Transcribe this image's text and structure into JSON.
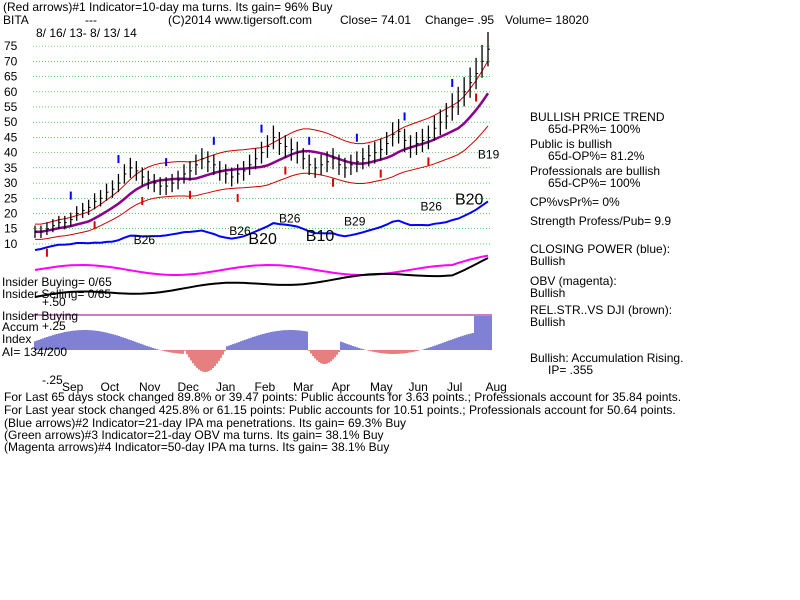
{
  "header": {
    "line1": "(Red arrows)#1 Indicator=10-day ma turns. Its gain= 96% Buy",
    "ticker": "BITA",
    "dashes": "---",
    "copyright": "(C)2014 www.tigersoft.com",
    "close": "Close=  74.01",
    "change": "Change= .95",
    "volume": "Volume= 18020",
    "date_range": "8/ 16/ 13- 8/ 13/ 14"
  },
  "right_panel": {
    "trend_title": "BULLISH PRICE TREND",
    "pr": "65d-PR%= 100%",
    "public_title": "Public is bullish",
    "op": "65d-OP%= 81.2%",
    "pros_title": "Professionals are bullish",
    "cp": "65d-CP%= 100%",
    "cpvspr": "CP%vsPr%=  0%",
    "strength": "Strength Profess/Pub= 9.9",
    "closing_power": "CLOSING POWER (blue):",
    "closing_power_val": "Bullish",
    "obv": "OBV (magenta):",
    "obv_val": "Bullish",
    "relstr": "REL.STR..VS DJI (brown):",
    "relstr_val": "Bullish",
    "accum": "Bullish: Accumulation Rising.",
    "ip": "IP=  .355"
  },
  "left_labels": {
    "insider_buying": "Insider Buying= 0/65",
    "insider_selling": "Insider Selling= 0/65",
    "insider_buying2": "Insider Buying",
    "accum": "Accum",
    "plus25": "+.25",
    "plus50": "+.50",
    "index": "Index",
    "ai": "AI= 134/200",
    "minus25": "-.25"
  },
  "footer": {
    "line1": "For Last 65 days stock changed  89.8% or  39.47 points:  Public accounts for  3.63 points.;  Professionals account for  35.84 points.",
    "line2": "For Last year stock changed  425.8% or  61.15 points:  Public accounts for  10.51 points.;  Professionals account for  50.64 points.",
    "line3": "(Blue arrows)#2 Indicator=21-day IPA ma penetrations. Its gain= 69.3% Buy",
    "line4": "(Green arrows)#3 Indicator=21-day OBV ma turns. Its gain= 38.1% Buy",
    "line5": "(Magenta arrows)#4 Indicator=50-day IPA ma turns. Its gain= 38.1% Buy"
  },
  "chart_data": {
    "type": "line",
    "x_months": [
      "Sep",
      "Oct",
      "Nov",
      "Dec",
      "Jan",
      "Feb",
      "Mar",
      "Apr",
      "May",
      "Jun",
      "Jul",
      "Aug"
    ],
    "y_ticks": [
      10,
      15,
      20,
      25,
      30,
      35,
      40,
      45,
      50,
      55,
      60,
      65,
      70,
      75
    ],
    "ylim": [
      8,
      78
    ],
    "price_close": [
      14,
      14,
      15,
      16,
      17,
      17,
      18,
      20,
      21,
      22,
      24,
      25,
      27,
      28,
      30,
      33,
      35,
      34,
      32,
      31,
      30,
      29,
      29,
      30,
      31,
      33,
      34,
      36,
      38,
      37,
      36,
      34,
      33,
      32,
      33,
      34,
      36,
      38,
      40,
      42,
      45,
      43,
      42,
      41,
      40,
      38,
      36,
      35,
      36,
      37,
      38,
      36,
      35,
      36,
      37,
      38,
      39,
      40,
      41,
      43,
      46,
      47,
      44,
      42,
      43,
      44,
      45,
      48,
      50,
      52,
      55,
      57,
      60,
      63,
      66,
      70,
      74
    ],
    "signals": [
      {
        "label": "B26",
        "month": 1.9,
        "price": 10
      },
      {
        "label": "B26",
        "month": 4.4,
        "price": 13
      },
      {
        "label": "B20",
        "month": 4.9,
        "price": 10
      },
      {
        "label": "B26",
        "month": 5.7,
        "price": 17
      },
      {
        "label": "B10",
        "month": 6.4,
        "price": 11
      },
      {
        "label": "B29",
        "month": 7.4,
        "price": 16
      },
      {
        "label": "B26",
        "month": 9.4,
        "price": 21
      },
      {
        "label": "B20",
        "month": 10.3,
        "price": 23
      },
      {
        "label": "B19",
        "month": 10.9,
        "price": 38
      }
    ],
    "colors": {
      "price": "#000000",
      "ma": "#8b008b",
      "band": "#cc0000",
      "closing_power": "#0000ff",
      "obv": "#ff00ff",
      "relstr": "#8b4513",
      "accum_pos": "#0000aa",
      "accum_neg": "#cc0000",
      "red_arrow": "#dd0000",
      "blue_arrow": "#0000ff",
      "grid": "#00aa00"
    }
  }
}
